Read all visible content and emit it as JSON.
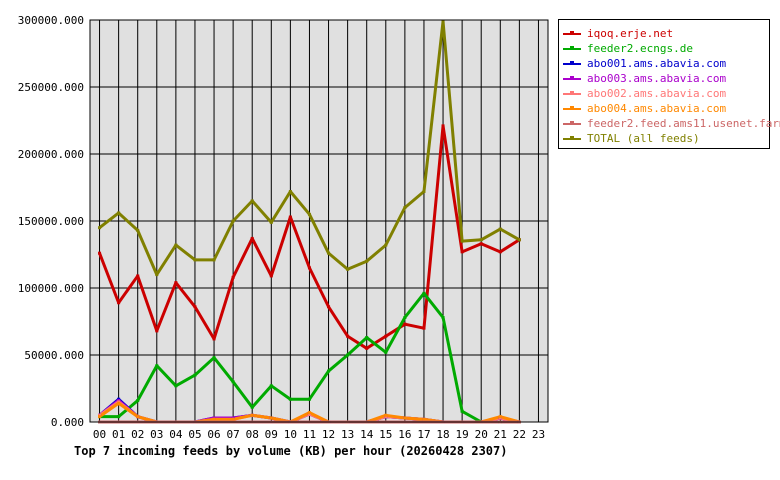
{
  "chart_data": {
    "type": "line",
    "title": "Top 7 incoming feeds by volume (KB) per hour (20260428 2307)",
    "xlabel": "",
    "ylabel": "",
    "ylim": [
      0,
      300000
    ],
    "yticks": [
      "0.000",
      "50000.000",
      "100000.000",
      "150000.000",
      "200000.000",
      "250000.000",
      "300000.000"
    ],
    "categories": [
      "00",
      "01",
      "02",
      "03",
      "04",
      "05",
      "06",
      "07",
      "08",
      "09",
      "10",
      "11",
      "12",
      "13",
      "14",
      "15",
      "16",
      "17",
      "18",
      "19",
      "20",
      "21",
      "22",
      "23"
    ],
    "grid": true,
    "legend_position": "right",
    "series": [
      {
        "name": "iqoq.erje.net",
        "color": "#cc0000",
        "values": [
          126000,
          89000,
          109000,
          68000,
          104000,
          86000,
          62000,
          108000,
          137000,
          109000,
          153000,
          115000,
          86000,
          64000,
          55000,
          64000,
          73000,
          70000,
          221000,
          127000,
          133000,
          127000,
          136000,
          null
        ]
      },
      {
        "name": "feeder2.ecngs.de",
        "color": "#00aa00",
        "values": [
          4000,
          4000,
          16000,
          42000,
          27000,
          35000,
          48000,
          30000,
          11000,
          27000,
          17000,
          17000,
          38000,
          50000,
          63000,
          52000,
          78000,
          96000,
          78000,
          8000,
          0,
          0,
          0,
          null
        ]
      },
      {
        "name": "abo001.ams.abavia.com",
        "color": "#0000cc",
        "values": [
          5000,
          17000,
          4000,
          0,
          0,
          0,
          3000,
          3000,
          5000,
          3000,
          0,
          6000,
          0,
          0,
          0,
          4000,
          3000,
          2000,
          0,
          0,
          0,
          3000,
          0,
          null
        ]
      },
      {
        "name": "abo003.ams.abavia.com",
        "color": "#aa00cc",
        "values": [
          5000,
          16000,
          4000,
          0,
          0,
          0,
          3000,
          3000,
          5000,
          3000,
          0,
          6000,
          0,
          0,
          0,
          4000,
          3000,
          2000,
          0,
          0,
          0,
          3000,
          0,
          null
        ]
      },
      {
        "name": "abo002.ams.abavia.com",
        "color": "#ff7777",
        "values": [
          5000,
          15000,
          4000,
          0,
          0,
          0,
          2000,
          2000,
          5000,
          3000,
          0,
          6000,
          0,
          0,
          0,
          4000,
          3000,
          2000,
          0,
          0,
          0,
          3000,
          0,
          null
        ]
      },
      {
        "name": "abo004.ams.abavia.com",
        "color": "#ff8800",
        "values": [
          4000,
          14000,
          4000,
          0,
          0,
          0,
          2000,
          2000,
          5000,
          3000,
          0,
          7000,
          0,
          0,
          0,
          5000,
          3000,
          2000,
          0,
          0,
          0,
          4000,
          0,
          null
        ]
      },
      {
        "name": "feeder2.feed.ams11.usenet.farm",
        "color": "#cc6666",
        "values": [
          0,
          0,
          0,
          0,
          0,
          0,
          0,
          0,
          0,
          0,
          0,
          0,
          0,
          0,
          0,
          0,
          0,
          0,
          0,
          0,
          0,
          0,
          0,
          null
        ]
      },
      {
        "name": "TOTAL (all feeds)",
        "color": "#808000",
        "values": [
          145000,
          156000,
          143000,
          110000,
          132000,
          121000,
          121000,
          150000,
          165000,
          149000,
          172000,
          155000,
          126000,
          114000,
          120000,
          132000,
          160000,
          172000,
          299000,
          135000,
          136000,
          144000,
          136000,
          null
        ]
      }
    ]
  }
}
